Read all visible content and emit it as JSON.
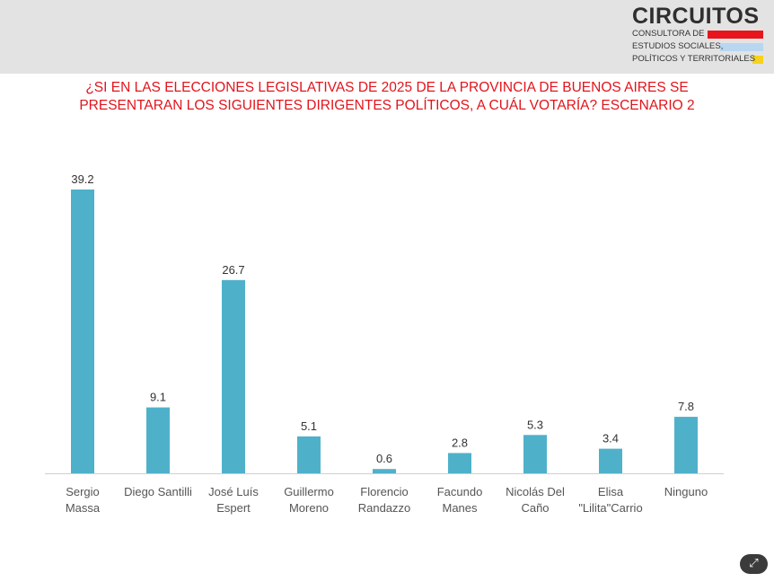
{
  "logo": {
    "name": "CIRCUITOS",
    "lines": [
      "CONSULTORA DE",
      "ESTUDIOS SOCIALES,",
      "POLÍTICOS Y TERRITORIALES"
    ],
    "bar_colors": [
      "#e8161c",
      "#b8d6ef",
      "#f5d21e"
    ]
  },
  "title_lines": [
    "¿SI EN LAS ELECCIONES LEGISLATIVAS DE 2025 DE LA PROVINCIA DE BUENOS AIRES SE",
    "PRESENTARAN LOS SIGUIENTES DIRIGENTES POLÍTICOS, A CUÁL VOTARÍA? ESCENARIO 2"
  ],
  "colors": {
    "bar": "#4fb1c9",
    "title": "#e2141b",
    "header_band": "#e3e3e3"
  },
  "expand_icon": "expand-icon",
  "chart_data": {
    "type": "bar",
    "title": "¿SI EN LAS ELECCIONES LEGISLATIVAS DE 2025 DE LA PROVINCIA DE BUENOS AIRES SE PRESENTARAN LOS SIGUIENTES DIRIGENTES POLÍTICOS, A CUÁL VOTARÍA? ESCENARIO 2",
    "categories": [
      [
        "Sergio",
        "Massa"
      ],
      [
        "Diego Santilli"
      ],
      [
        "José Luís",
        "Espert"
      ],
      [
        "Guillermo",
        "Moreno"
      ],
      [
        "Florencio",
        "Randazzo"
      ],
      [
        "Facundo",
        "Manes"
      ],
      [
        "Nicolás Del",
        "Caño"
      ],
      [
        "Elisa",
        "\"Lilita\"Carrio"
      ],
      [
        "Ninguno"
      ]
    ],
    "values": [
      39.2,
      9.1,
      26.7,
      5.1,
      0.6,
      2.8,
      5.3,
      3.4,
      7.8
    ],
    "value_labels": [
      "39.2",
      "9.1",
      "26.7",
      "5.1",
      "0.6",
      "2.8",
      "5.3",
      "3.4",
      "7.8"
    ],
    "ylim": [
      0,
      40
    ],
    "grid": false,
    "legend": "none",
    "xlabel": "",
    "ylabel": ""
  }
}
